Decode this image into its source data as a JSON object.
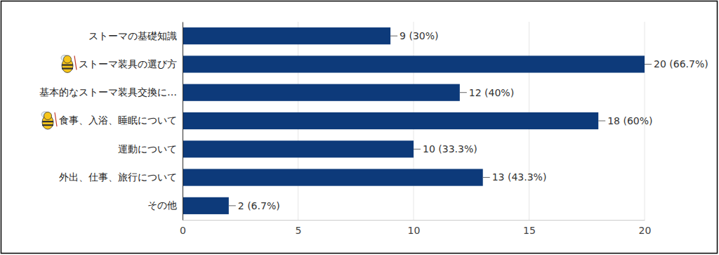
{
  "chart_data": {
    "type": "bar",
    "orientation": "horizontal",
    "categories": [
      "ストーマの基礎知識",
      "ストーマ装具の選び方",
      "基本的なストーマ装具交換に…",
      "食事、入浴、睡眠について",
      "運動について",
      "外出、仕事、旅行について",
      "その他"
    ],
    "values": [
      9,
      20,
      12,
      18,
      10,
      13,
      2
    ],
    "value_labels": [
      "9 (30%)",
      "20 (66.7%)",
      "12 (40%)",
      "18 (60%)",
      "10 (33.3%)",
      "13 (43.3%)",
      "2 (6.7%)"
    ],
    "color": "#0d3a7a",
    "xlim": [
      0,
      20
    ],
    "xticks": [
      0,
      5,
      10,
      15,
      20
    ],
    "grid": true,
    "data_labels": true
  }
}
